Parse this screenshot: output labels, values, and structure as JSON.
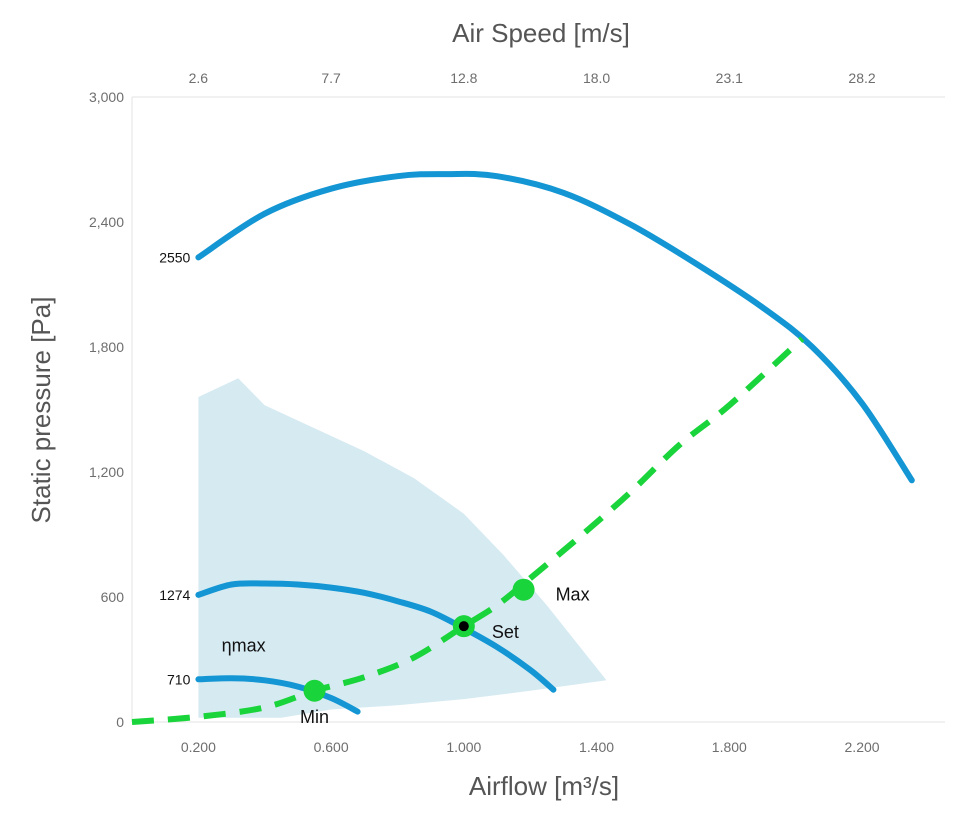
{
  "chart_data": {
    "type": "line",
    "x_axis": {
      "label": "Airflow [m³/s]",
      "lim": [
        0.0,
        2.45
      ],
      "ticks": [
        0.2,
        0.6,
        1.0,
        1.4,
        1.8,
        2.2
      ],
      "tick_labels": [
        "0.200",
        "0.600",
        "1.000",
        "1.400",
        "1.800",
        "2.200"
      ]
    },
    "x2_axis": {
      "label": "Air Speed [m/s]",
      "ticks": [
        0.2,
        0.6,
        1.0,
        1.4,
        1.8,
        2.2
      ],
      "tick_labels": [
        "2.6",
        "7.7",
        "12.8",
        "18.0",
        "23.1",
        "28.2"
      ]
    },
    "y_axis": {
      "label": "Static pressure [Pa]",
      "lim": [
        0,
        3000
      ],
      "ticks": [
        0,
        600,
        1200,
        1800,
        2400,
        3000
      ],
      "tick_labels": [
        "0",
        "600",
        "1,200",
        "1,800",
        "2,400",
        "3,000"
      ]
    },
    "grid": "horizontal-top",
    "series": [
      {
        "name": "2550",
        "color": "#1396d3",
        "x": [
          0.2,
          0.4,
          0.6,
          0.8,
          0.95,
          1.1,
          1.3,
          1.5,
          1.7,
          1.9,
          2.05,
          2.2,
          2.35
        ],
        "y": [
          2230,
          2440,
          2560,
          2620,
          2630,
          2620,
          2540,
          2390,
          2200,
          1990,
          1800,
          1530,
          1160
        ]
      },
      {
        "name": "1274",
        "color": "#1396d3",
        "x": [
          0.2,
          0.3,
          0.4,
          0.5,
          0.6,
          0.7,
          0.8,
          0.9,
          1.0,
          1.1,
          1.2,
          1.27
        ],
        "y": [
          610,
          660,
          665,
          660,
          645,
          620,
          580,
          530,
          450,
          360,
          250,
          155
        ]
      },
      {
        "name": "710",
        "color": "#1396d3",
        "x": [
          0.2,
          0.3,
          0.4,
          0.5,
          0.6,
          0.68
        ],
        "y": [
          205,
          210,
          200,
          170,
          115,
          50
        ]
      },
      {
        "name": "",
        "style": "dashed",
        "color": "#19d43a",
        "x": [
          0.0,
          0.2,
          0.4,
          0.55,
          0.7,
          0.85,
          1.0,
          1.1,
          1.2,
          1.35,
          1.5,
          1.65,
          1.8,
          2.02
        ],
        "y": [
          0,
          25,
          70,
          150,
          215,
          310,
          460,
          560,
          690,
          890,
          1100,
          1330,
          1520,
          1840
        ]
      }
    ],
    "region": {
      "color": "#d6eaf2",
      "x": [
        0.2,
        0.32,
        0.4,
        0.55,
        0.7,
        0.85,
        1.0,
        1.12,
        1.25,
        1.43,
        1.2,
        1.0,
        0.8,
        0.6,
        0.45,
        0.2
      ],
      "y": [
        1560,
        1650,
        1520,
        1410,
        1300,
        1170,
        1000,
        800,
        560,
        200,
        150,
        110,
        80,
        60,
        20,
        20
      ]
    },
    "points": [
      {
        "label": "Min",
        "x": 0.55,
        "y": 150,
        "style": "filled"
      },
      {
        "label": "Set",
        "x": 1.0,
        "y": 460,
        "style": "ring"
      },
      {
        "label": "Max",
        "x": 1.18,
        "y": 635,
        "style": "filled"
      }
    ],
    "annotations": [
      {
        "text": "ηmax",
        "x": 0.27,
        "y": 310
      }
    ]
  }
}
